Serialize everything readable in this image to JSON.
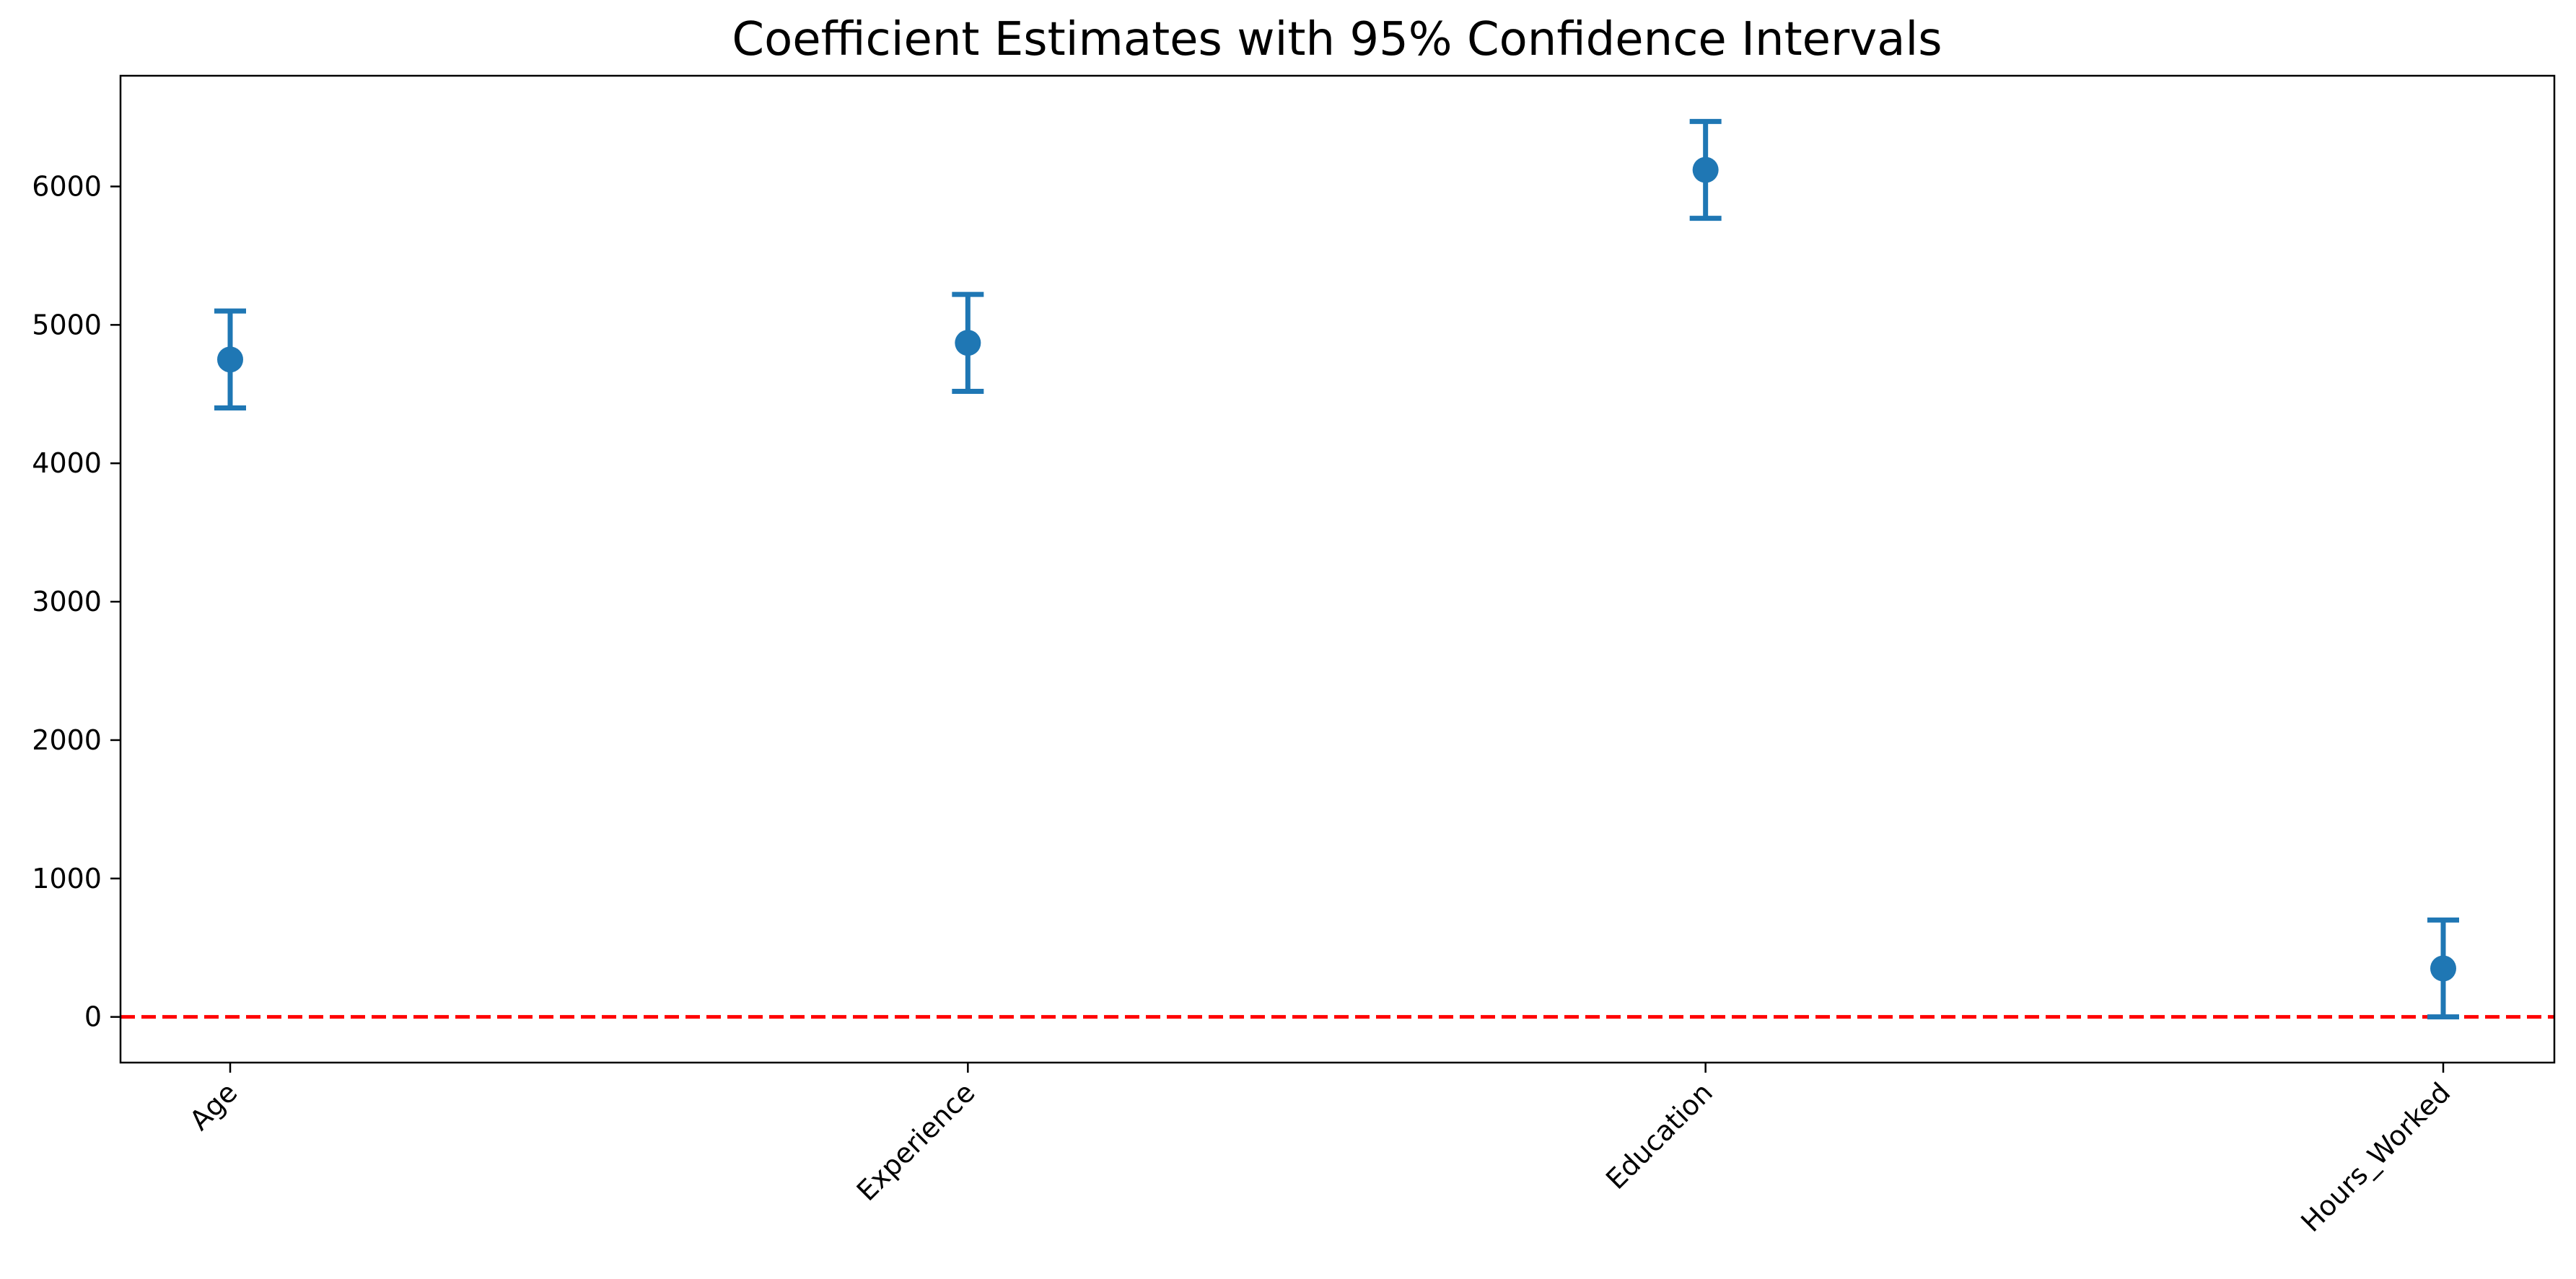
{
  "chart_data": {
    "type": "errorbar",
    "title": "Coefficient Estimates with 95% Confidence Intervals",
    "xlabel": "",
    "ylabel": "",
    "categories": [
      "Age",
      "Experience",
      "Education",
      "Hours_Worked"
    ],
    "series": [
      {
        "estimates": [
          4750,
          4870,
          6120,
          350
        ],
        "ci_lower": [
          4400,
          4520,
          5770,
          0
        ],
        "ci_upper": [
          5100,
          5220,
          6470,
          700
        ]
      }
    ],
    "ylim": [
      -330,
      6800
    ],
    "yticks": [
      0,
      1000,
      2000,
      3000,
      4000,
      5000,
      6000
    ],
    "reference_line": {
      "y": 0,
      "style": "dashed",
      "color": "#ff0000"
    },
    "colors": {
      "series": "#1f77b4",
      "reference": "#ff0000",
      "axes": "#000000"
    },
    "grid": false,
    "x_tick_rotation_deg": 45
  }
}
